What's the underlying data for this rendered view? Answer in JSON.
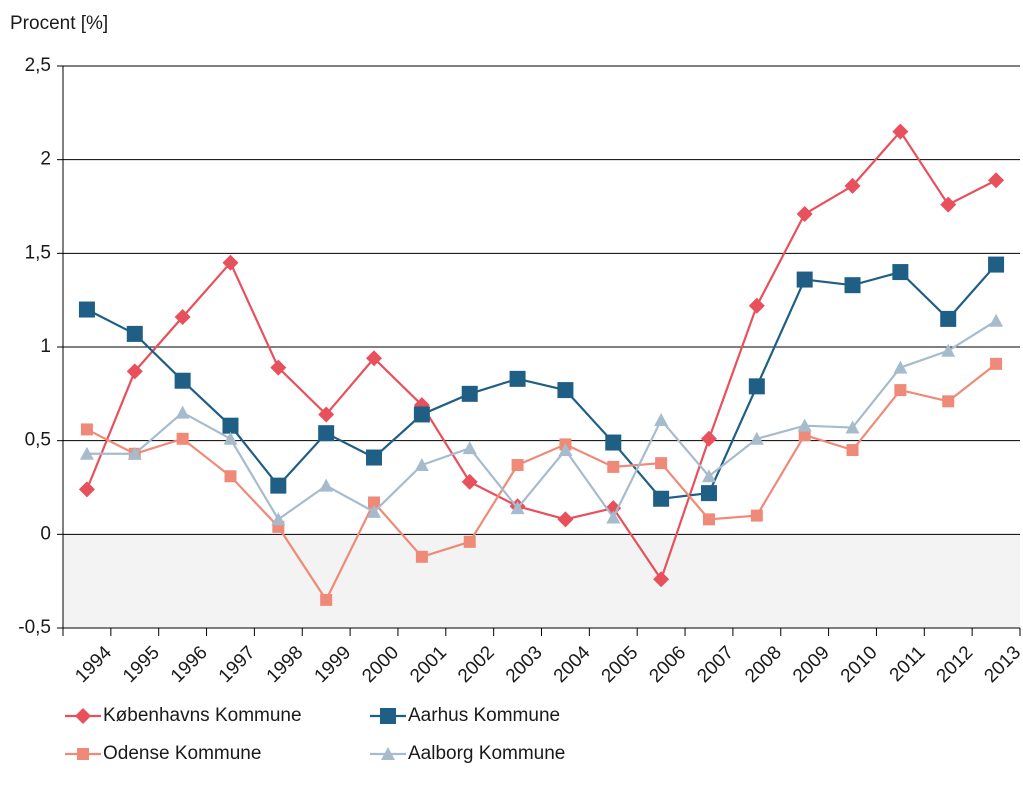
{
  "chart_data": {
    "type": "line",
    "ylabel": "Procent [%]",
    "categories": [
      "1994",
      "1995",
      "1996",
      "1997",
      "1998",
      "1999",
      "2000",
      "2001",
      "2002",
      "2003",
      "2004",
      "2005",
      "2006",
      "2007",
      "2008",
      "2009",
      "2010",
      "2011",
      "2012",
      "2013"
    ],
    "series": [
      {
        "name": "Københavns Kommune",
        "color": "#e8505b",
        "marker": "diamond",
        "values": [
          0.24,
          0.87,
          1.16,
          1.45,
          0.89,
          0.64,
          0.94,
          0.69,
          0.28,
          0.15,
          0.08,
          0.14,
          -0.24,
          0.51,
          1.22,
          1.71,
          1.86,
          2.15,
          1.76,
          1.89
        ]
      },
      {
        "name": "Aarhus Kommune",
        "color": "#1f5f85",
        "marker": "square-large",
        "values": [
          1.2,
          1.07,
          0.82,
          0.58,
          0.26,
          0.54,
          0.41,
          0.64,
          0.75,
          0.83,
          0.77,
          0.49,
          0.19,
          0.22,
          0.79,
          1.36,
          1.33,
          1.4,
          1.15,
          1.44
        ]
      },
      {
        "name": "Odense Kommune",
        "color": "#f08a78",
        "marker": "square",
        "values": [
          0.56,
          0.43,
          0.51,
          0.31,
          0.04,
          -0.35,
          0.17,
          -0.12,
          -0.04,
          0.37,
          0.48,
          0.36,
          0.38,
          0.08,
          0.1,
          0.53,
          0.45,
          0.77,
          0.71,
          0.91
        ]
      },
      {
        "name": "Aalborg Kommune",
        "color": "#a6bccd",
        "marker": "triangle",
        "values": [
          0.43,
          0.43,
          0.65,
          0.51,
          0.08,
          0.26,
          0.12,
          0.37,
          0.46,
          0.14,
          0.45,
          0.09,
          0.61,
          0.31,
          0.51,
          0.58,
          0.57,
          0.89,
          0.98,
          1.14
        ]
      }
    ],
    "ylim": [
      -0.5,
      2.5
    ],
    "yticks": [
      {
        "value": -0.5,
        "label": "-0,5"
      },
      0,
      {
        "value": 0.5,
        "label": "0,5"
      },
      1,
      {
        "value": 1.5,
        "label": "1,5"
      },
      2,
      {
        "value": 2.5,
        "label": "2,5"
      }
    ],
    "grid": true,
    "negative_shading": "#f3f3f3",
    "legend": "bottom"
  }
}
